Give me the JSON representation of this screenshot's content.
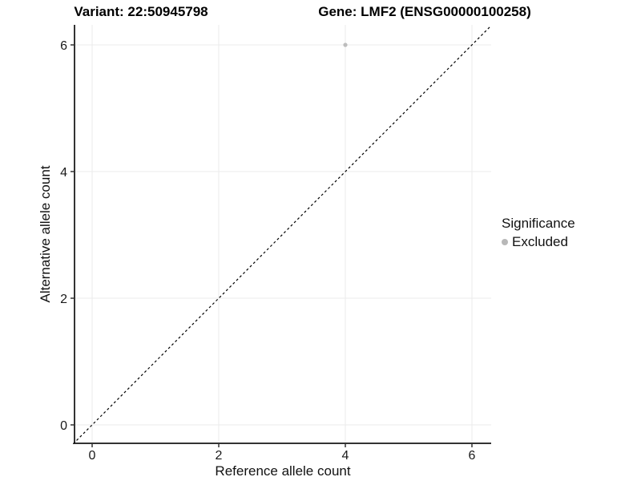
{
  "header": {
    "title_left": "Variant: 22:50945798",
    "title_right": "Gene: LMF2 (ENSG00000100258)"
  },
  "chart_data": {
    "type": "scatter",
    "title_left": "Variant: 22:50945798",
    "title_right": "Gene: LMF2 (ENSG00000100258)",
    "xlabel": "Reference allele count",
    "ylabel": "Alternative allele count",
    "xlim": [
      -0.3,
      6.3
    ],
    "ylim": [
      -0.3,
      6.3
    ],
    "x_ticks": [
      0,
      2,
      4,
      6
    ],
    "y_ticks": [
      0,
      2,
      4,
      6
    ],
    "grid": "major-only",
    "points": [
      {
        "x": 4,
        "y": 6,
        "series": "Excluded"
      }
    ],
    "reference_line": {
      "type": "identity",
      "style": "dashed",
      "from": [
        -0.3,
        -0.3
      ],
      "to": [
        6.3,
        6.3
      ]
    },
    "legend": {
      "title": "Significance",
      "position": "right",
      "entries": [
        {
          "label": "Excluded",
          "color": "#b8b8b8"
        }
      ]
    },
    "colors": {
      "point": "#bdbdbd",
      "grid": "#ebebeb",
      "axis_line": "#333333",
      "dashed_line": "#000000",
      "tick_text": "#1a1a1a"
    }
  }
}
